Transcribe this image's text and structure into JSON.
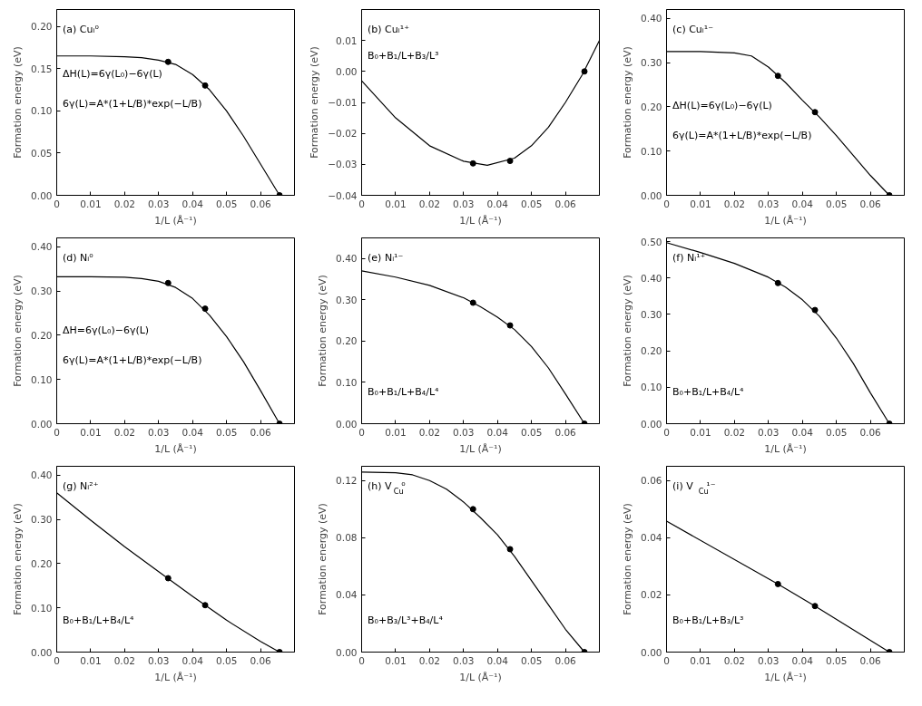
{
  "chart_data": [
    {
      "type": "line",
      "title": "(a) Cuᵢ⁰",
      "xlabel": "1/L (Å⁻¹)",
      "ylabel": "Formation energy (eV)",
      "xlim": [
        0,
        0.07
      ],
      "xticks": [
        0,
        0.01,
        0.02,
        0.03,
        0.04,
        0.05,
        0.06
      ],
      "ylim": [
        0,
        0.22
      ],
      "yticks": [
        {
          "value": 0,
          "label": "0.00"
        },
        {
          "value": 0.05,
          "label": "0.05"
        },
        {
          "value": 0.1,
          "label": "0.10"
        },
        {
          "value": 0.15,
          "label": "0.15"
        },
        {
          "value": 0.2,
          "label": "0.20"
        }
      ],
      "annotations": [
        "ΔH(L)=6γ(L₀)−6γ(L)",
        "6γ(L)=A*(1+L/B)*exp(−L/B)"
      ],
      "series": [
        {
          "type": "line",
          "color": "#000000",
          "marker": "none",
          "x": [
            0,
            0.01,
            0.02,
            0.025,
            0.03,
            0.035,
            0.04,
            0.045,
            0.05,
            0.055,
            0.06,
            0.0656
          ],
          "values": [
            0.165,
            0.165,
            0.164,
            0.163,
            0.16,
            0.155,
            0.143,
            0.125,
            0.1,
            0.07,
            0.037,
            0
          ]
        },
        {
          "type": "scatter",
          "color": "#000000",
          "marker": "circle",
          "x": [
            0.0328,
            0.0437,
            0.0656
          ],
          "values": [
            0.158,
            0.13,
            0
          ]
        }
      ]
    },
    {
      "type": "line",
      "title": "(b) Cuᵢ¹⁺",
      "xlabel": "1/L (Å⁻¹)",
      "ylabel": "Formation energy (eV)",
      "xlim": [
        0,
        0.07
      ],
      "xticks": [
        0,
        0.01,
        0.02,
        0.03,
        0.04,
        0.05,
        0.06
      ],
      "ylim": [
        -0.04,
        0.02
      ],
      "yticks": [
        {
          "value": -0.04,
          "label": "−0.04"
        },
        {
          "value": -0.03,
          "label": "−0.03"
        },
        {
          "value": -0.02,
          "label": "−0.02"
        },
        {
          "value": -0.01,
          "label": "−0.01"
        },
        {
          "value": 0,
          "label": "0.00"
        },
        {
          "value": 0.01,
          "label": "0.01"
        }
      ],
      "annotations": [
        "B₀+B₁/L+B₃/L³"
      ],
      "series": [
        {
          "type": "line",
          "color": "#000000",
          "marker": "none",
          "x": [
            0,
            0.01,
            0.02,
            0.03,
            0.037,
            0.045,
            0.05,
            0.055,
            0.06,
            0.065,
            0.07
          ],
          "values": [
            -0.003,
            -0.015,
            -0.024,
            -0.029,
            -0.0303,
            -0.028,
            -0.024,
            -0.018,
            -0.01,
            -0.001,
            0.01
          ]
        },
        {
          "type": "scatter",
          "color": "#000000",
          "marker": "circle",
          "x": [
            0.0328,
            0.0437,
            0.0656
          ],
          "values": [
            -0.0297,
            -0.0289,
            0
          ]
        }
      ]
    },
    {
      "type": "line",
      "title": "(c) Cuᵢ¹⁻",
      "xlabel": "1/L (Å⁻¹)",
      "ylabel": "Formation energy (eV)",
      "xlim": [
        0,
        0.07
      ],
      "xticks": [
        0,
        0.01,
        0.02,
        0.03,
        0.04,
        0.05,
        0.06
      ],
      "ylim": [
        0,
        0.42
      ],
      "yticks": [
        {
          "value": 0,
          "label": "0.00"
        },
        {
          "value": 0.1,
          "label": "0.10"
        },
        {
          "value": 0.2,
          "label": "0.20"
        },
        {
          "value": 0.3,
          "label": "0.30"
        },
        {
          "value": 0.4,
          "label": "0.40"
        }
      ],
      "annotations": [
        "ΔH(L)=6γ(L₀)−6γ(L)",
        "6γ(L)=A*(1+L/B)*exp(−L/B)"
      ],
      "series": [
        {
          "type": "line",
          "color": "#000000",
          "marker": "none",
          "x": [
            0,
            0.01,
            0.02,
            0.025,
            0.03,
            0.035,
            0.04,
            0.045,
            0.05,
            0.055,
            0.06,
            0.0656
          ],
          "values": [
            0.325,
            0.325,
            0.322,
            0.315,
            0.29,
            0.255,
            0.215,
            0.177,
            0.135,
            0.09,
            0.045,
            0
          ]
        },
        {
          "type": "scatter",
          "color": "#000000",
          "marker": "circle",
          "x": [
            0.0328,
            0.0437,
            0.0656
          ],
          "values": [
            0.27,
            0.188,
            0
          ]
        }
      ]
    },
    {
      "type": "line",
      "title": "(d) Nᵢ⁰",
      "xlabel": "1/L (Å⁻¹)",
      "ylabel": "Formation energy (eV)",
      "xlim": [
        0,
        0.07
      ],
      "xticks": [
        0,
        0.01,
        0.02,
        0.03,
        0.04,
        0.05,
        0.06
      ],
      "ylim": [
        0,
        0.42
      ],
      "yticks": [
        {
          "value": 0,
          "label": "0.00"
        },
        {
          "value": 0.1,
          "label": "0.10"
        },
        {
          "value": 0.2,
          "label": "0.20"
        },
        {
          "value": 0.3,
          "label": "0.30"
        },
        {
          "value": 0.4,
          "label": "0.40"
        }
      ],
      "annotations": [
        "ΔH=6γ(L₀)−6γ(L)",
        "6γ(L)=A*(1+L/B)*exp(−L/B)"
      ],
      "series": [
        {
          "type": "line",
          "color": "#000000",
          "marker": "none",
          "x": [
            0,
            0.01,
            0.02,
            0.025,
            0.03,
            0.035,
            0.04,
            0.045,
            0.05,
            0.055,
            0.06,
            0.0656
          ],
          "values": [
            0.332,
            0.332,
            0.331,
            0.328,
            0.322,
            0.308,
            0.283,
            0.245,
            0.197,
            0.14,
            0.075,
            0
          ]
        },
        {
          "type": "scatter",
          "color": "#000000",
          "marker": "circle",
          "x": [
            0.0328,
            0.0437,
            0.0656
          ],
          "values": [
            0.318,
            0.26,
            0
          ]
        }
      ]
    },
    {
      "type": "line",
      "title": "(e) Nᵢ¹⁻",
      "xlabel": "1/L (Å⁻¹)",
      "ylabel": "Formation energy (eV)",
      "xlim": [
        0,
        0.07
      ],
      "xticks": [
        0,
        0.01,
        0.02,
        0.03,
        0.04,
        0.05,
        0.06
      ],
      "ylim": [
        0,
        0.45
      ],
      "yticks": [
        {
          "value": 0,
          "label": "0.00"
        },
        {
          "value": 0.1,
          "label": "0.10"
        },
        {
          "value": 0.2,
          "label": "0.20"
        },
        {
          "value": 0.3,
          "label": "0.30"
        },
        {
          "value": 0.4,
          "label": "0.40"
        }
      ],
      "annotations": [
        "B₀+B₁/L+B₄/L⁴"
      ],
      "series": [
        {
          "type": "line",
          "color": "#000000",
          "marker": "none",
          "x": [
            0,
            0.01,
            0.02,
            0.03,
            0.035,
            0.04,
            0.045,
            0.05,
            0.055,
            0.06,
            0.0656
          ],
          "values": [
            0.37,
            0.355,
            0.335,
            0.305,
            0.283,
            0.258,
            0.228,
            0.187,
            0.135,
            0.072,
            0
          ]
        },
        {
          "type": "scatter",
          "color": "#000000",
          "marker": "circle",
          "x": [
            0.0328,
            0.0437,
            0.0656
          ],
          "values": [
            0.293,
            0.238,
            0
          ]
        }
      ]
    },
    {
      "type": "line",
      "title": "(f) Nᵢ¹⁺",
      "xlabel": "1/L (Å⁻¹)",
      "ylabel": "Formation energy (eV)",
      "xlim": [
        0,
        0.07
      ],
      "xticks": [
        0,
        0.01,
        0.02,
        0.03,
        0.04,
        0.05,
        0.06
      ],
      "ylim": [
        0,
        0.51
      ],
      "yticks": [
        {
          "value": 0,
          "label": "0.00"
        },
        {
          "value": 0.1,
          "label": "0.10"
        },
        {
          "value": 0.2,
          "label": "0.20"
        },
        {
          "value": 0.3,
          "label": "0.30"
        },
        {
          "value": 0.4,
          "label": "0.40"
        },
        {
          "value": 0.5,
          "label": "0.50"
        }
      ],
      "annotations": [
        "B₀+B₁/L+B₄/L⁴"
      ],
      "series": [
        {
          "type": "line",
          "color": "#000000",
          "marker": "none",
          "x": [
            0,
            0.01,
            0.02,
            0.03,
            0.035,
            0.04,
            0.045,
            0.05,
            0.055,
            0.06,
            0.0656
          ],
          "values": [
            0.497,
            0.47,
            0.44,
            0.402,
            0.375,
            0.34,
            0.295,
            0.235,
            0.165,
            0.085,
            0
          ]
        },
        {
          "type": "scatter",
          "color": "#000000",
          "marker": "circle",
          "x": [
            0.0328,
            0.0437,
            0.0656
          ],
          "values": [
            0.386,
            0.312,
            0
          ]
        }
      ]
    },
    {
      "type": "line",
      "title": "(g) Nᵢ²⁺",
      "xlabel": "1/L (Å⁻¹)",
      "ylabel": "Formation energy (eV)",
      "xlim": [
        0,
        0.07
      ],
      "xticks": [
        0,
        0.01,
        0.02,
        0.03,
        0.04,
        0.05,
        0.06
      ],
      "ylim": [
        0,
        0.42
      ],
      "yticks": [
        {
          "value": 0,
          "label": "0.00"
        },
        {
          "value": 0.1,
          "label": "0.10"
        },
        {
          "value": 0.2,
          "label": "0.20"
        },
        {
          "value": 0.3,
          "label": "0.30"
        },
        {
          "value": 0.4,
          "label": "0.40"
        }
      ],
      "annotations": [
        "B₀+B₁/L+B₄/L⁴"
      ],
      "series": [
        {
          "type": "line",
          "color": "#000000",
          "marker": "none",
          "x": [
            0,
            0.01,
            0.02,
            0.03,
            0.04,
            0.05,
            0.06,
            0.0656
          ],
          "values": [
            0.36,
            0.298,
            0.238,
            0.182,
            0.126,
            0.072,
            0.024,
            0
          ]
        },
        {
          "type": "scatter",
          "color": "#000000",
          "marker": "circle",
          "x": [
            0.0328,
            0.0437,
            0.0656
          ],
          "values": [
            0.167,
            0.106,
            0
          ]
        }
      ]
    },
    {
      "type": "line",
      "title": "(h) V$_{Cu}$⁰",
      "xlabel": "1/L (Å⁻¹)",
      "ylabel": "Formation energy (eV)",
      "xlim": [
        0,
        0.07
      ],
      "xticks": [
        0,
        0.01,
        0.02,
        0.03,
        0.04,
        0.05,
        0.06
      ],
      "ylim": [
        0,
        0.13
      ],
      "yticks": [
        {
          "value": 0,
          "label": "0.00"
        },
        {
          "value": 0.04,
          "label": "0.04"
        },
        {
          "value": 0.08,
          "label": "0.08"
        },
        {
          "value": 0.12,
          "label": "0.12"
        }
      ],
      "annotations": [
        "B₀+B₃/L³+B₄/L⁴"
      ],
      "series": [
        {
          "type": "line",
          "color": "#000000",
          "marker": "none",
          "x": [
            0,
            0.01,
            0.015,
            0.02,
            0.025,
            0.03,
            0.035,
            0.04,
            0.045,
            0.05,
            0.055,
            0.06,
            0.0656
          ],
          "values": [
            0.126,
            0.1255,
            0.124,
            0.12,
            0.114,
            0.105,
            0.094,
            0.082,
            0.067,
            0.05,
            0.033,
            0.016,
            0
          ]
        },
        {
          "type": "scatter",
          "color": "#000000",
          "marker": "circle",
          "x": [
            0.0328,
            0.0437,
            0.0656
          ],
          "values": [
            0.1,
            0.072,
            0
          ]
        }
      ]
    },
    {
      "type": "line",
      "title": "(i) V$_{Cu}$¹⁻",
      "xlabel": "1/L (Å⁻¹)",
      "ylabel": "Formation energy (eV)",
      "xlim": [
        0,
        0.07
      ],
      "xticks": [
        0,
        0.01,
        0.02,
        0.03,
        0.04,
        0.05,
        0.06
      ],
      "ylim": [
        0,
        0.065
      ],
      "yticks": [
        {
          "value": 0,
          "label": "0.00"
        },
        {
          "value": 0.02,
          "label": "0.02"
        },
        {
          "value": 0.04,
          "label": "0.04"
        },
        {
          "value": 0.06,
          "label": "0.06"
        }
      ],
      "annotations": [
        "B₀+B₁/L+B₃/L³"
      ],
      "series": [
        {
          "type": "line",
          "color": "#000000",
          "marker": "none",
          "x": [
            0,
            0.0328,
            0.0437,
            0.0656
          ],
          "values": [
            0.0458,
            0.0238,
            0.0161,
            0
          ]
        },
        {
          "type": "scatter",
          "color": "#000000",
          "marker": "circle",
          "x": [
            0.0328,
            0.0437,
            0.0656
          ],
          "values": [
            0.0238,
            0.0161,
            0
          ]
        }
      ]
    }
  ]
}
